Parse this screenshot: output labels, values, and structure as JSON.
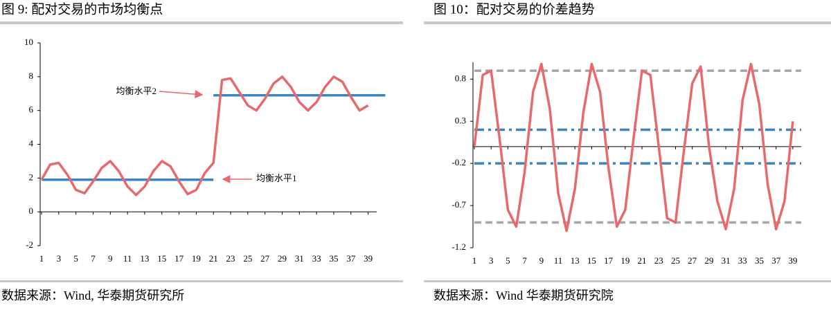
{
  "chart_data": [
    {
      "type": "line",
      "title": "图 9: 配对交易的市场均衡点",
      "source": "数据来源：Wind, 华泰期货研究所",
      "x": [
        1,
        2,
        3,
        4,
        5,
        6,
        7,
        8,
        9,
        10,
        11,
        12,
        13,
        14,
        15,
        16,
        17,
        18,
        19,
        20,
        21,
        22,
        23,
        24,
        25,
        26,
        27,
        28,
        29,
        30,
        31,
        32,
        33,
        34,
        35,
        36,
        37,
        38,
        39
      ],
      "series": [
        {
          "color": "#e8696b",
          "values": [
            1.9,
            2.8,
            2.9,
            2.2,
            1.3,
            1.1,
            1.8,
            2.6,
            3.0,
            2.4,
            1.5,
            1.0,
            1.5,
            2.4,
            3.0,
            2.7,
            1.8,
            1.05,
            1.3,
            2.3,
            2.9,
            7.8,
            7.9,
            7.1,
            6.3,
            6.0,
            6.7,
            7.6,
            8.0,
            7.4,
            6.5,
            6.0,
            6.5,
            7.4,
            8.0,
            7.7,
            6.8,
            6.0,
            6.3
          ]
        }
      ],
      "hlines": [
        {
          "value": 1.9,
          "x": [
            1,
            21
          ],
          "color": "#3a85c0",
          "style": "solid",
          "label": "均衡水平1"
        },
        {
          "value": 6.9,
          "x": [
            21,
            41
          ],
          "color": "#3a85c0",
          "style": "solid",
          "label": "均衡水平2"
        }
      ],
      "xlim": [
        1,
        40
      ],
      "xticks": [
        1,
        3,
        5,
        7,
        9,
        11,
        13,
        15,
        17,
        19,
        21,
        23,
        25,
        27,
        29,
        31,
        33,
        35,
        37,
        39
      ],
      "ylim": [
        -2,
        10
      ],
      "yticks": [
        -2,
        0,
        2,
        4,
        6,
        8,
        10
      ]
    },
    {
      "type": "line",
      "title": "图 10：配对交易的价差趋势",
      "source": "数据来源：Wind 华泰期货研究院",
      "x": [
        1,
        2,
        3,
        4,
        5,
        6,
        7,
        8,
        9,
        10,
        11,
        12,
        13,
        14,
        15,
        16,
        17,
        18,
        19,
        20,
        21,
        22,
        23,
        24,
        25,
        26,
        27,
        28,
        29,
        30,
        31,
        32,
        33,
        34,
        35,
        36,
        37,
        38,
        39
      ],
      "series": [
        {
          "color": "#e8696b",
          "values": [
            0,
            0.85,
            0.9,
            0.1,
            -0.75,
            -0.95,
            -0.3,
            0.65,
            0.98,
            0.45,
            -0.55,
            -1.0,
            -0.5,
            0.4,
            0.98,
            0.65,
            -0.25,
            -0.95,
            -0.75,
            0.1,
            0.9,
            0.85,
            0.0,
            -0.85,
            -0.9,
            -0.05,
            0.75,
            0.95,
            0.0,
            -0.65,
            -0.98,
            -0.5,
            0.55,
            0.98,
            0.5,
            -0.45,
            -0.98,
            -0.65,
            0.3
          ]
        }
      ],
      "hlines": [
        {
          "value": 0.9,
          "x": [
            1,
            40
          ],
          "color": "#a6a6a6",
          "style": "dash"
        },
        {
          "value": -0.9,
          "x": [
            1,
            40
          ],
          "color": "#a6a6a6",
          "style": "dash"
        },
        {
          "value": 0.2,
          "x": [
            1,
            40
          ],
          "color": "#3a85c0",
          "style": "dashdot"
        },
        {
          "value": -0.2,
          "x": [
            1,
            40
          ],
          "color": "#3a85c0",
          "style": "dashdot"
        }
      ],
      "xlim": [
        1,
        40
      ],
      "xticks": [
        1,
        3,
        5,
        7,
        9,
        11,
        13,
        15,
        17,
        19,
        21,
        23,
        25,
        27,
        29,
        31,
        33,
        35,
        37,
        39
      ],
      "ylim": [
        -1.2,
        1.0
      ],
      "yticks": [
        -1.2,
        -0.7,
        -0.2,
        0.3,
        0.8
      ]
    }
  ]
}
